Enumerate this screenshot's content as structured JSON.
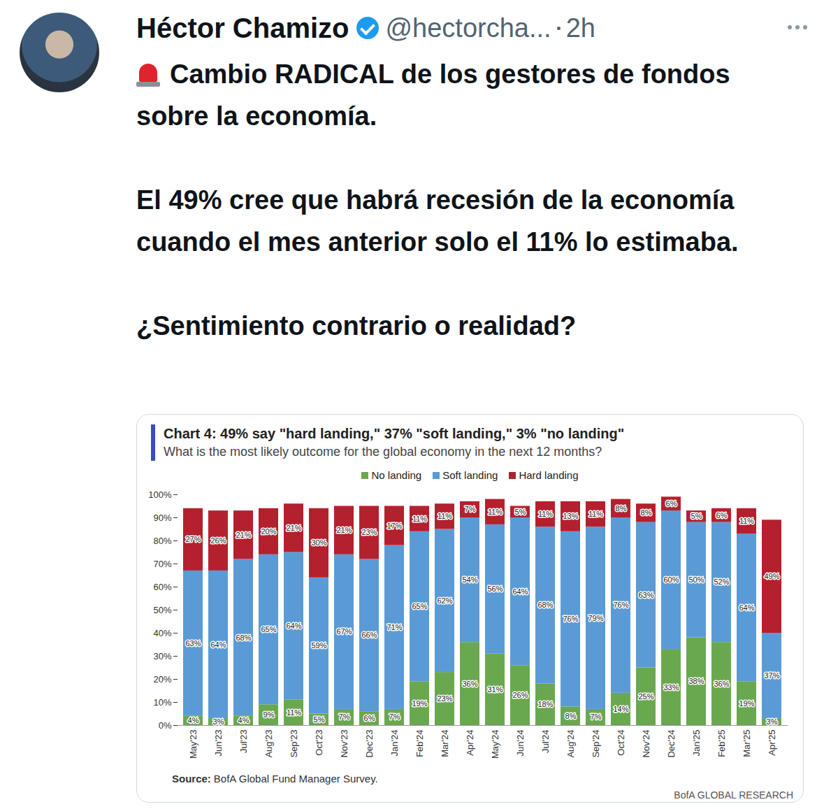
{
  "tweet": {
    "name": "Héctor Chamizo",
    "handle": "@hectorcha...",
    "time": "2h",
    "paragraphs": [
      "Cambio RADICAL de los gestores de fondos sobre la economía.",
      "El 49% cree que habrá recesión de la economía cuando el mes anterior solo el 11% lo estimaba.",
      "¿Sentimiento contrario o realidad?"
    ]
  },
  "chart_data": {
    "type": "bar",
    "stacked": true,
    "data_labels": true,
    "legend": "top",
    "title": "Chart 4: 49% say \"hard landing,\" 37% \"soft landing,\" 3% \"no landing\"",
    "subtitle": "What is the most likely outcome for the global economy in the next 12 months?",
    "source_label": "Source:",
    "source": "BofA Global Fund Manager Survey.",
    "footer": "BofA GLOBAL RESEARCH",
    "categories": [
      "May'23",
      "Jun'23",
      "Jul'23",
      "Aug'23",
      "Sep'23",
      "Oct'23",
      "Nov'23",
      "Dec'23",
      "Jan'24",
      "Feb'24",
      "Mar'24",
      "Apr'24",
      "May'24",
      "Jun'24",
      "Jul'24",
      "Aug'24",
      "Sep'24",
      "Oct'24",
      "Nov'24",
      "Dec'24",
      "Jan'25",
      "Feb'25",
      "Mar'25",
      "Apr'25"
    ],
    "series": [
      {
        "name": "No landing",
        "color": "#6aa84f",
        "values": [
          4,
          3,
          4,
          9,
          11,
          5,
          7,
          6,
          7,
          19,
          23,
          36,
          31,
          26,
          18,
          8,
          7,
          14,
          25,
          33,
          38,
          36,
          19,
          3
        ],
        "value_labels": [
          "4%",
          "3%",
          "4%",
          "9%",
          "11%",
          "5%",
          "7%",
          "6%",
          "7%",
          "19%",
          "23%",
          "36%",
          "31%",
          "26%",
          "18%",
          "8%",
          "7%",
          "14%",
          "25%",
          "33%",
          "38%",
          "36%",
          "19%",
          "3%"
        ]
      },
      {
        "name": "Soft landing",
        "color": "#5b9bd5",
        "values": [
          63,
          64,
          68,
          65,
          64,
          59,
          67,
          66,
          71,
          65,
          62,
          54,
          56,
          64,
          68,
          76,
          79,
          76,
          63,
          60,
          50,
          52,
          64,
          37
        ],
        "value_labels": [
          "63%",
          "64%",
          "68%",
          "65%",
          "64%",
          "59%",
          "67%",
          "66%",
          "71%",
          "65%",
          "62%",
          "54%",
          "56%",
          "64%",
          "68%",
          "76%",
          "79%",
          "76%",
          "63%",
          "60%",
          "50%",
          "52%",
          "64%",
          "37%"
        ]
      },
      {
        "name": "Hard landing",
        "color": "#b5202e",
        "values": [
          27,
          26,
          21,
          20,
          21,
          30,
          21,
          23,
          17,
          11,
          11,
          7,
          11,
          5,
          11,
          13,
          11,
          8,
          8,
          6,
          5,
          6,
          11,
          49
        ],
        "value_labels": [
          "27%",
          "26%",
          "21%",
          "20%",
          "21%",
          "30%",
          "21%",
          "23%",
          "17%",
          "11%",
          "11%",
          "7%",
          "11%",
          "5%",
          "11%",
          "13%",
          "11%",
          "8%",
          "8%",
          "6%",
          "5%",
          "6%",
          "11%",
          "49%"
        ]
      }
    ],
    "ylim": [
      0,
      100
    ],
    "yticks": [
      {
        "value": 0,
        "label": "0%"
      },
      {
        "value": 10,
        "label": "10%"
      },
      {
        "value": 20,
        "label": "20%"
      },
      {
        "value": 30,
        "label": "30%"
      },
      {
        "value": 40,
        "label": "40%"
      },
      {
        "value": 50,
        "label": "50%"
      },
      {
        "value": 60,
        "label": "60%"
      },
      {
        "value": 70,
        "label": "70%"
      },
      {
        "value": 80,
        "label": "80%"
      },
      {
        "value": 90,
        "label": "90%"
      },
      {
        "value": 100,
        "label": "100%"
      }
    ]
  }
}
